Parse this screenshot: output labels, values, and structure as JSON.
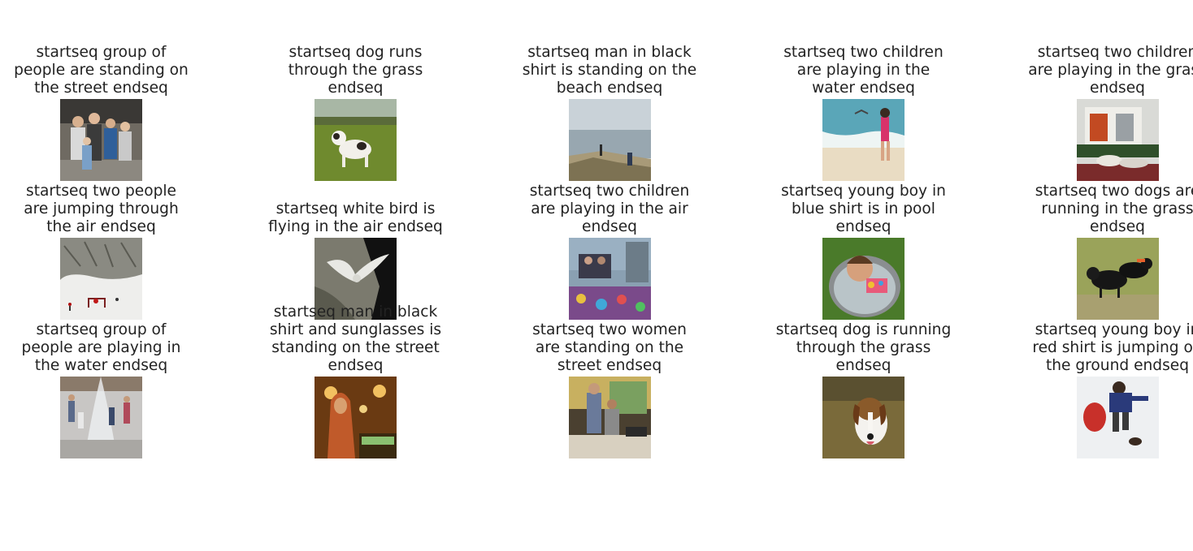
{
  "figure": {
    "cells": [
      {
        "row": 0,
        "col": 0,
        "caption": "startseq group of people are standing on the street endseq",
        "scene": "group-people-street"
      },
      {
        "row": 0,
        "col": 1,
        "caption": "startseq dog runs through the grass endseq",
        "scene": "dog-grass"
      },
      {
        "row": 0,
        "col": 2,
        "caption": "startseq man in black shirt is standing on the beach endseq",
        "scene": "foggy-lake"
      },
      {
        "row": 0,
        "col": 3,
        "caption": "startseq two children are playing in the water endseq",
        "scene": "girl-beach"
      },
      {
        "row": 0,
        "col": 4,
        "caption": "startseq two children are playing in the grass endseq",
        "scene": "people-bench"
      },
      {
        "row": 1,
        "col": 0,
        "caption": "startseq two people are jumping through the air endseq",
        "scene": "snow-field"
      },
      {
        "row": 1,
        "col": 1,
        "caption": "startseq white bird is flying in the air endseq",
        "scene": "bird-rocks"
      },
      {
        "row": 1,
        "col": 2,
        "caption": "startseq two children are playing in the air endseq",
        "scene": "carnival-ride"
      },
      {
        "row": 1,
        "col": 3,
        "caption": "startseq young boy in blue shirt is in pool endseq",
        "scene": "girl-pool"
      },
      {
        "row": 1,
        "col": 4,
        "caption": "startseq two dogs are running in the grass endseq",
        "scene": "black-dogs"
      },
      {
        "row": 2,
        "col": 0,
        "caption": "startseq group of people are playing in the water endseq",
        "scene": "fountain-kids"
      },
      {
        "row": 2,
        "col": 1,
        "caption": "startseq man in black shirt and sunglasses is standing on the street endseq",
        "scene": "hooded-person"
      },
      {
        "row": 2,
        "col": 2,
        "caption": "startseq two women are standing on the street endseq",
        "scene": "shop-counter"
      },
      {
        "row": 2,
        "col": 3,
        "caption": "startseq dog is running through the grass endseq",
        "scene": "beagle"
      },
      {
        "row": 2,
        "col": 4,
        "caption": "startseq young boy in red shirt is jumping on the ground endseq",
        "scene": "boy-snow"
      }
    ]
  }
}
